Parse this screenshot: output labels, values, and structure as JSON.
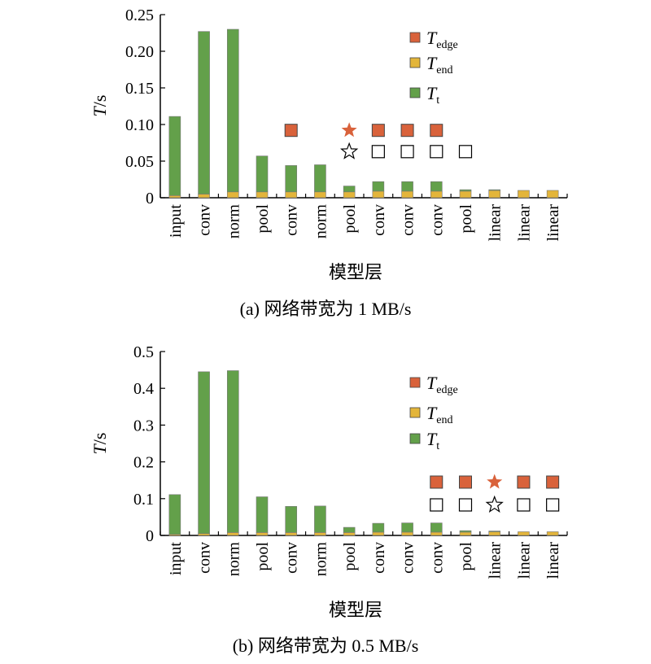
{
  "chart_data": [
    {
      "type": "bar",
      "stacked": true,
      "caption": "(a) 网络带宽为 1 MB/s",
      "xlabel": "模型层",
      "ylabel_main": "T",
      "ylabel_unit": "/s",
      "ylim": [
        0,
        0.25
      ],
      "yticks": [
        "0",
        "0.05",
        "0.10",
        "0.15",
        "0.20",
        "0.25"
      ],
      "ytick_values": [
        0,
        0.05,
        0.1,
        0.15,
        0.2,
        0.25
      ],
      "categories": [
        "input",
        "conv",
        "norm",
        "pool",
        "conv",
        "norm",
        "pool",
        "conv",
        "conv",
        "conv",
        "pool",
        "linear",
        "linear",
        "linear"
      ],
      "series": [
        {
          "key": "end",
          "color": "#e3b53a",
          "values": [
            0.003,
            0.005,
            0.008,
            0.008,
            0.008,
            0.008,
            0.008,
            0.009,
            0.009,
            0.009,
            0.009,
            0.01,
            0.01,
            0.01
          ]
        },
        {
          "key": "t",
          "color": "#63a04a",
          "values": [
            0.108,
            0.222,
            0.222,
            0.049,
            0.036,
            0.037,
            0.008,
            0.013,
            0.013,
            0.013,
            0.002,
            0.001,
            0.0,
            0.0
          ]
        }
      ],
      "markers": [
        {
          "category_index": 4,
          "y": 0.092,
          "shape": "filled-square"
        },
        {
          "category_index": 6,
          "y": 0.092,
          "shape": "filled-star"
        },
        {
          "category_index": 7,
          "y": 0.092,
          "shape": "filled-square"
        },
        {
          "category_index": 8,
          "y": 0.092,
          "shape": "filled-square"
        },
        {
          "category_index": 9,
          "y": 0.092,
          "shape": "filled-square"
        },
        {
          "category_index": 6,
          "y": 0.063,
          "shape": "open-star"
        },
        {
          "category_index": 7,
          "y": 0.063,
          "shape": "open-square"
        },
        {
          "category_index": 8,
          "y": 0.063,
          "shape": "open-square"
        },
        {
          "category_index": 9,
          "y": 0.063,
          "shape": "open-square"
        },
        {
          "category_index": 10,
          "y": 0.063,
          "shape": "open-square"
        }
      ],
      "legend_placement": "top-right"
    },
    {
      "type": "bar",
      "stacked": true,
      "caption": "(b) 网络带宽为 0.5 MB/s",
      "xlabel": "模型层",
      "ylabel_main": "T",
      "ylabel_unit": "/s",
      "ylim": [
        0,
        0.5
      ],
      "yticks": [
        "0",
        "0.1",
        "0.2",
        "0.3",
        "0.4",
        "0.5"
      ],
      "ytick_values": [
        0,
        0.1,
        0.2,
        0.3,
        0.4,
        0.5
      ],
      "categories": [
        "input",
        "conv",
        "norm",
        "pool",
        "conv",
        "norm",
        "pool",
        "conv",
        "conv",
        "conv",
        "pool",
        "linear",
        "linear",
        "linear"
      ],
      "series": [
        {
          "key": "end",
          "color": "#e3b53a",
          "values": [
            0.003,
            0.005,
            0.008,
            0.008,
            0.008,
            0.008,
            0.008,
            0.009,
            0.009,
            0.009,
            0.009,
            0.01,
            0.01,
            0.01
          ]
        },
        {
          "key": "t",
          "color": "#63a04a",
          "values": [
            0.108,
            0.44,
            0.44,
            0.097,
            0.071,
            0.072,
            0.014,
            0.024,
            0.025,
            0.025,
            0.004,
            0.002,
            0.0,
            0.0
          ]
        }
      ],
      "markers": [
        {
          "category_index": 9,
          "y": 0.145,
          "shape": "filled-square"
        },
        {
          "category_index": 10,
          "y": 0.145,
          "shape": "filled-square"
        },
        {
          "category_index": 11,
          "y": 0.145,
          "shape": "filled-star"
        },
        {
          "category_index": 12,
          "y": 0.145,
          "shape": "filled-square"
        },
        {
          "category_index": 13,
          "y": 0.145,
          "shape": "filled-square"
        },
        {
          "category_index": 9,
          "y": 0.083,
          "shape": "open-square"
        },
        {
          "category_index": 10,
          "y": 0.083,
          "shape": "open-square"
        },
        {
          "category_index": 11,
          "y": 0.083,
          "shape": "open-star"
        },
        {
          "category_index": 12,
          "y": 0.083,
          "shape": "open-square"
        },
        {
          "category_index": 13,
          "y": 0.083,
          "shape": "open-square"
        }
      ],
      "legend_placement": "top-right"
    }
  ],
  "legend": [
    {
      "symbol": "T",
      "sub": "edge",
      "color": "#d9623b"
    },
    {
      "symbol": "T",
      "sub": "end",
      "color": "#e3b53a"
    },
    {
      "symbol": "T",
      "sub": "t",
      "color": "#63a04a"
    }
  ],
  "colors": {
    "edge_marker": "#d9623b",
    "end": "#e3b53a",
    "t": "#63a04a",
    "axis": "#000000"
  }
}
